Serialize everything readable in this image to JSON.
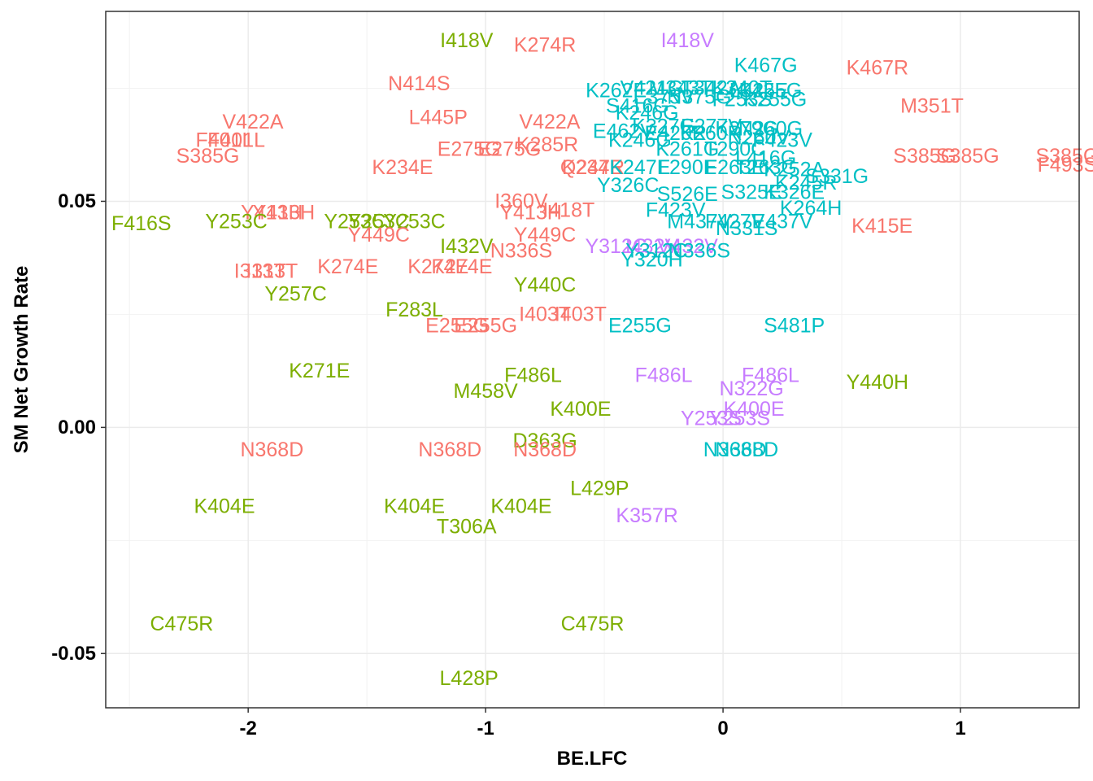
{
  "chart_data": {
    "type": "scatter",
    "title": "",
    "xlabel": "BE.LFC",
    "ylabel": "SM Net Growth Rate",
    "xlim": [
      -2.6,
      1.5
    ],
    "ylim": [
      -0.062,
      0.092
    ],
    "x_ticks": [
      -2,
      -1,
      0,
      1
    ],
    "y_ticks": [
      -0.05,
      0.0,
      0.05
    ],
    "x_tick_labels": [
      "-2",
      "-1",
      "0",
      "1"
    ],
    "y_tick_labels": [
      "-0.05",
      "0.00",
      "0.05"
    ],
    "grid": true,
    "legend": "none",
    "colors": {
      "red": "#F8766D",
      "green": "#7CAE00",
      "teal": "#00BFC4",
      "purple": "#C77CFF"
    },
    "points": [
      {
        "label": "I418V",
        "x": -1.08,
        "y": 0.0855,
        "color": "green"
      },
      {
        "label": "K274R",
        "x": -0.75,
        "y": 0.0845,
        "color": "red"
      },
      {
        "label": "I418V",
        "x": -0.15,
        "y": 0.0855,
        "color": "purple"
      },
      {
        "label": "K467G",
        "x": 0.18,
        "y": 0.08,
        "color": "teal"
      },
      {
        "label": "K467R",
        "x": 0.65,
        "y": 0.0795,
        "color": "red"
      },
      {
        "label": "N414S",
        "x": -1.28,
        "y": 0.076,
        "color": "red"
      },
      {
        "label": "K262E",
        "x": -0.45,
        "y": 0.0745,
        "color": "teal"
      },
      {
        "label": "V421G",
        "x": -0.3,
        "y": 0.075,
        "color": "teal"
      },
      {
        "label": "M343T",
        "x": -0.18,
        "y": 0.075,
        "color": "teal"
      },
      {
        "label": "T342A",
        "x": -0.05,
        "y": 0.075,
        "color": "teal"
      },
      {
        "label": "K340T",
        "x": 0.08,
        "y": 0.075,
        "color": "teal"
      },
      {
        "label": "L342E",
        "x": 0.15,
        "y": 0.0745,
        "color": "teal"
      },
      {
        "label": "K255G",
        "x": 0.2,
        "y": 0.0745,
        "color": "teal"
      },
      {
        "label": "E375V",
        "x": -0.25,
        "y": 0.073,
        "color": "teal"
      },
      {
        "label": "N375G",
        "x": -0.1,
        "y": 0.073,
        "color": "teal"
      },
      {
        "label": "F253S",
        "x": 0.08,
        "y": 0.0725,
        "color": "teal"
      },
      {
        "label": "K255G",
        "x": 0.22,
        "y": 0.0725,
        "color": "teal"
      },
      {
        "label": "M351T",
        "x": 0.88,
        "y": 0.071,
        "color": "red"
      },
      {
        "label": "S416G",
        "x": -0.36,
        "y": 0.071,
        "color": "teal"
      },
      {
        "label": "K246G",
        "x": -0.32,
        "y": 0.0695,
        "color": "teal"
      },
      {
        "label": "L445P",
        "x": -1.2,
        "y": 0.0685,
        "color": "red"
      },
      {
        "label": "V422A",
        "x": -1.98,
        "y": 0.0675,
        "color": "red"
      },
      {
        "label": "V422A",
        "x": -0.73,
        "y": 0.0675,
        "color": "red"
      },
      {
        "label": "E462V",
        "x": -0.42,
        "y": 0.0655,
        "color": "teal"
      },
      {
        "label": "K327G",
        "x": -0.25,
        "y": 0.0665,
        "color": "teal"
      },
      {
        "label": "E277V",
        "x": -0.05,
        "y": 0.0665,
        "color": "teal"
      },
      {
        "label": "K279G",
        "x": 0.1,
        "y": 0.066,
        "color": "teal"
      },
      {
        "label": "N260G",
        "x": 0.2,
        "y": 0.066,
        "color": "teal"
      },
      {
        "label": "E420R",
        "x": -0.2,
        "y": 0.065,
        "color": "teal"
      },
      {
        "label": "K260R",
        "x": -0.05,
        "y": 0.065,
        "color": "teal"
      },
      {
        "label": "F401L",
        "x": -2.1,
        "y": 0.0635,
        "color": "red"
      },
      {
        "label": "F401L",
        "x": -2.05,
        "y": 0.0635,
        "color": "red"
      },
      {
        "label": "K246G",
        "x": -0.35,
        "y": 0.0635,
        "color": "teal"
      },
      {
        "label": "N260V",
        "x": 0.15,
        "y": 0.064,
        "color": "teal"
      },
      {
        "label": "F423V",
        "x": 0.25,
        "y": 0.0635,
        "color": "teal"
      },
      {
        "label": "E275G",
        "x": -1.07,
        "y": 0.0615,
        "color": "red"
      },
      {
        "label": "E275G",
        "x": -0.9,
        "y": 0.0615,
        "color": "red"
      },
      {
        "label": "K285R",
        "x": -0.74,
        "y": 0.0625,
        "color": "red"
      },
      {
        "label": "K261G",
        "x": -0.15,
        "y": 0.0615,
        "color": "teal"
      },
      {
        "label": "T290C",
        "x": 0.05,
        "y": 0.0615,
        "color": "teal"
      },
      {
        "label": "S385G",
        "x": -2.17,
        "y": 0.06,
        "color": "red"
      },
      {
        "label": "S385G",
        "x": 0.85,
        "y": 0.06,
        "color": "red"
      },
      {
        "label": "S385G",
        "x": 1.03,
        "y": 0.06,
        "color": "red"
      },
      {
        "label": "S385G",
        "x": 1.45,
        "y": 0.06,
        "color": "red"
      },
      {
        "label": "F493S",
        "x": 1.45,
        "y": 0.058,
        "color": "red"
      },
      {
        "label": "L416G",
        "x": 0.18,
        "y": 0.0595,
        "color": "teal"
      },
      {
        "label": "K234E",
        "x": -1.35,
        "y": 0.0575,
        "color": "red"
      },
      {
        "label": "K234E",
        "x": -0.55,
        "y": 0.0575,
        "color": "red"
      },
      {
        "label": "Q247R",
        "x": -0.55,
        "y": 0.0575,
        "color": "red"
      },
      {
        "label": "K247E",
        "x": -0.35,
        "y": 0.0575,
        "color": "teal"
      },
      {
        "label": "L290E",
        "x": -0.15,
        "y": 0.0575,
        "color": "teal"
      },
      {
        "label": "F263E",
        "x": 0.05,
        "y": 0.0575,
        "color": "teal"
      },
      {
        "label": "T263G",
        "x": 0.18,
        "y": 0.0575,
        "color": "teal"
      },
      {
        "label": "K252A",
        "x": 0.3,
        "y": 0.057,
        "color": "teal"
      },
      {
        "label": "S331G",
        "x": 0.48,
        "y": 0.0555,
        "color": "teal"
      },
      {
        "label": "K245R",
        "x": 0.35,
        "y": 0.054,
        "color": "teal"
      },
      {
        "label": "Y326C",
        "x": -0.4,
        "y": 0.0535,
        "color": "teal"
      },
      {
        "label": "S526E",
        "x": -0.15,
        "y": 0.0515,
        "color": "teal"
      },
      {
        "label": "S325E",
        "x": 0.12,
        "y": 0.052,
        "color": "teal"
      },
      {
        "label": "K326E",
        "x": 0.3,
        "y": 0.052,
        "color": "teal"
      },
      {
        "label": "I360V",
        "x": -0.85,
        "y": 0.05,
        "color": "red"
      },
      {
        "label": "Y413H",
        "x": -1.9,
        "y": 0.0475,
        "color": "red"
      },
      {
        "label": "Y413H",
        "x": -1.85,
        "y": 0.0475,
        "color": "red"
      },
      {
        "label": "Y413H",
        "x": -0.81,
        "y": 0.0475,
        "color": "red"
      },
      {
        "label": "I418T",
        "x": -0.65,
        "y": 0.048,
        "color": "red"
      },
      {
        "label": "F423V",
        "x": -0.2,
        "y": 0.048,
        "color": "teal"
      },
      {
        "label": "K264H",
        "x": 0.37,
        "y": 0.0485,
        "color": "teal"
      },
      {
        "label": "F416S",
        "x": -2.45,
        "y": 0.045,
        "color": "green"
      },
      {
        "label": "Y253C",
        "x": -2.05,
        "y": 0.0455,
        "color": "green"
      },
      {
        "label": "Y253C",
        "x": -1.55,
        "y": 0.0455,
        "color": "green"
      },
      {
        "label": "Y253C",
        "x": -1.45,
        "y": 0.0455,
        "color": "green"
      },
      {
        "label": "Y253C",
        "x": -1.3,
        "y": 0.0455,
        "color": "green"
      },
      {
        "label": "M437V",
        "x": -0.1,
        "y": 0.0455,
        "color": "teal"
      },
      {
        "label": "F427V",
        "x": 0.05,
        "y": 0.0455,
        "color": "teal"
      },
      {
        "label": "E437V",
        "x": 0.25,
        "y": 0.0455,
        "color": "teal"
      },
      {
        "label": "K415E",
        "x": 0.67,
        "y": 0.0445,
        "color": "red"
      },
      {
        "label": "Y449C",
        "x": -1.45,
        "y": 0.0425,
        "color": "red"
      },
      {
        "label": "Y449C",
        "x": -0.75,
        "y": 0.0425,
        "color": "red"
      },
      {
        "label": "N331S",
        "x": 0.1,
        "y": 0.044,
        "color": "teal"
      },
      {
        "label": "I432V",
        "x": -1.08,
        "y": 0.04,
        "color": "green"
      },
      {
        "label": "Y312C",
        "x": -0.45,
        "y": 0.04,
        "color": "purple"
      },
      {
        "label": "I432V",
        "x": -0.3,
        "y": 0.04,
        "color": "purple"
      },
      {
        "label": "V432V",
        "x": -0.15,
        "y": 0.04,
        "color": "purple"
      },
      {
        "label": "N336S",
        "x": -0.85,
        "y": 0.039,
        "color": "red"
      },
      {
        "label": "Y312C",
        "x": -0.28,
        "y": 0.039,
        "color": "teal"
      },
      {
        "label": "N336S",
        "x": -0.1,
        "y": 0.039,
        "color": "teal"
      },
      {
        "label": "Y320H",
        "x": -0.3,
        "y": 0.037,
        "color": "teal"
      },
      {
        "label": "I313T",
        "x": -1.95,
        "y": 0.0345,
        "color": "red"
      },
      {
        "label": "I313T",
        "x": -1.9,
        "y": 0.0345,
        "color": "red"
      },
      {
        "label": "K274E",
        "x": -1.58,
        "y": 0.0355,
        "color": "red"
      },
      {
        "label": "K274E",
        "x": -1.2,
        "y": 0.0355,
        "color": "red"
      },
      {
        "label": "K274E",
        "x": -1.1,
        "y": 0.0355,
        "color": "red"
      },
      {
        "label": "Y440C",
        "x": -0.75,
        "y": 0.0315,
        "color": "green"
      },
      {
        "label": "Y257C",
        "x": -1.8,
        "y": 0.0295,
        "color": "green"
      },
      {
        "label": "F283L",
        "x": -1.3,
        "y": 0.026,
        "color": "green"
      },
      {
        "label": "I403T",
        "x": -0.75,
        "y": 0.025,
        "color": "red"
      },
      {
        "label": "I403T",
        "x": -0.6,
        "y": 0.025,
        "color": "red"
      },
      {
        "label": "E255G",
        "x": -1.12,
        "y": 0.0225,
        "color": "red"
      },
      {
        "label": "E255G",
        "x": -1.0,
        "y": 0.0225,
        "color": "red"
      },
      {
        "label": "E255G",
        "x": -0.35,
        "y": 0.0225,
        "color": "teal"
      },
      {
        "label": "S481P",
        "x": 0.3,
        "y": 0.0225,
        "color": "teal"
      },
      {
        "label": "K271E",
        "x": -1.7,
        "y": 0.0125,
        "color": "green"
      },
      {
        "label": "F486L",
        "x": -0.8,
        "y": 0.0115,
        "color": "green"
      },
      {
        "label": "F486L",
        "x": -0.25,
        "y": 0.0115,
        "color": "purple"
      },
      {
        "label": "F486L",
        "x": 0.2,
        "y": 0.0115,
        "color": "purple"
      },
      {
        "label": "Y440H",
        "x": 0.65,
        "y": 0.01,
        "color": "green"
      },
      {
        "label": "N322G",
        "x": 0.12,
        "y": 0.0085,
        "color": "purple"
      },
      {
        "label": "M458V",
        "x": -1.0,
        "y": 0.008,
        "color": "green"
      },
      {
        "label": "K400E",
        "x": -0.6,
        "y": 0.004,
        "color": "green"
      },
      {
        "label": "K400E",
        "x": 0.13,
        "y": 0.004,
        "color": "purple"
      },
      {
        "label": "Y253S",
        "x": -0.05,
        "y": 0.002,
        "color": "purple"
      },
      {
        "label": "Y253S",
        "x": 0.07,
        "y": 0.002,
        "color": "purple"
      },
      {
        "label": "D363G",
        "x": -0.75,
        "y": -0.003,
        "color": "green"
      },
      {
        "label": "N368D",
        "x": -1.9,
        "y": -0.005,
        "color": "red"
      },
      {
        "label": "N368D",
        "x": -1.15,
        "y": -0.005,
        "color": "red"
      },
      {
        "label": "N368D",
        "x": -0.75,
        "y": -0.005,
        "color": "red"
      },
      {
        "label": "N368D",
        "x": 0.05,
        "y": -0.005,
        "color": "teal"
      },
      {
        "label": "N368D",
        "x": 0.1,
        "y": -0.005,
        "color": "teal"
      },
      {
        "label": "L429P",
        "x": -0.52,
        "y": -0.0135,
        "color": "green"
      },
      {
        "label": "K404E",
        "x": -2.1,
        "y": -0.0175,
        "color": "green"
      },
      {
        "label": "K404E",
        "x": -1.3,
        "y": -0.0175,
        "color": "green"
      },
      {
        "label": "K404E",
        "x": -0.85,
        "y": -0.0175,
        "color": "green"
      },
      {
        "label": "K357R",
        "x": -0.32,
        "y": -0.0195,
        "color": "purple"
      },
      {
        "label": "T306A",
        "x": -1.08,
        "y": -0.022,
        "color": "green"
      },
      {
        "label": "C475R",
        "x": -2.28,
        "y": -0.0435,
        "color": "green"
      },
      {
        "label": "C475R",
        "x": -0.55,
        "y": -0.0435,
        "color": "green"
      },
      {
        "label": "L428P",
        "x": -1.07,
        "y": -0.0555,
        "color": "green"
      }
    ]
  }
}
